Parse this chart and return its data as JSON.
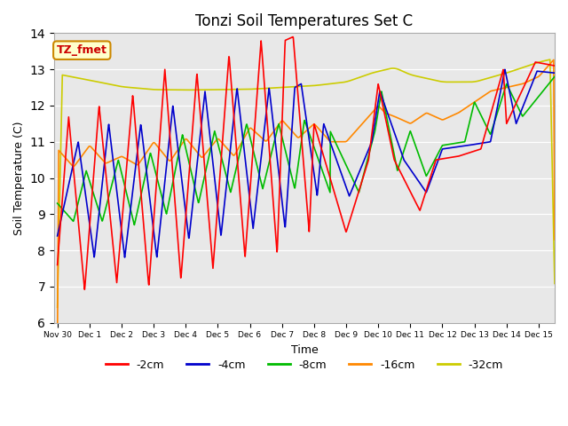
{
  "title": "Tonzi Soil Temperatures Set C",
  "xlabel": "Time",
  "ylabel": "Soil Temperature (C)",
  "ylim": [
    6.0,
    14.0
  ],
  "yticks": [
    6.0,
    7.0,
    8.0,
    9.0,
    10.0,
    11.0,
    12.0,
    13.0,
    14.0
  ],
  "background_color": "#e8e8e8",
  "legend_labels": [
    "-2cm",
    "-4cm",
    "-8cm",
    "-16cm",
    "-32cm"
  ],
  "line_colors": [
    "#ff0000",
    "#0000cc",
    "#00bb00",
    "#ff8800",
    "#cccc00"
  ],
  "annotation_label": "TZ_fmet",
  "annotation_color": "#cc0000",
  "annotation_bg": "#ffffcc",
  "x_tick_labels": [
    "Nov 30",
    "Dec 1",
    "Dec 2",
    "Dec 3",
    "Dec 4",
    "Dec 5",
    "Dec 6",
    "Dec 7",
    "Dec 8",
    "Dec 9",
    "Dec 10",
    "Dec 11",
    "Dec 12",
    "Dec 13",
    "Dec 14",
    "Dec 15"
  ],
  "line_width": 1.2
}
